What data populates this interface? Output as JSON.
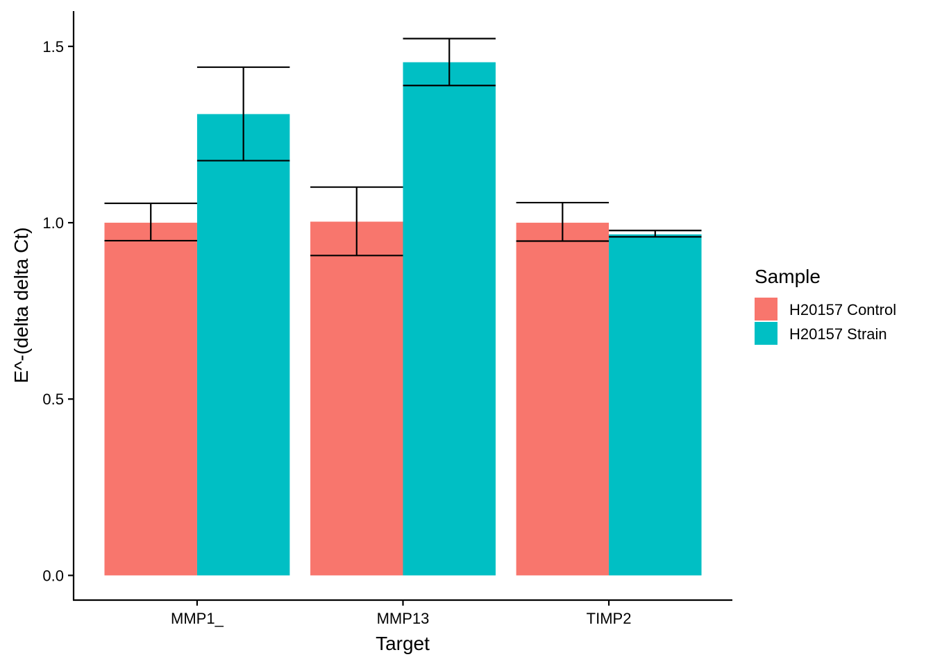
{
  "chart_data": {
    "type": "bar",
    "xlabel": "Target",
    "ylabel": "E^-(delta delta Ct)",
    "categories": [
      "MMP1_",
      "MMP13",
      "TIMP2"
    ],
    "ylim": [
      -0.07,
      1.6
    ],
    "yticks": [
      0.0,
      0.5,
      1.0,
      1.5
    ],
    "ytick_labels": [
      "0.0",
      "0.5",
      "1.0",
      "1.5"
    ],
    "legend": {
      "title": "Sample",
      "position": "right"
    },
    "grid": false,
    "series": [
      {
        "name": "H20157 Control",
        "color": "#F8766D",
        "values": [
          1.0,
          1.003,
          1.0
        ],
        "err_low": [
          0.949,
          0.907,
          0.948
        ],
        "err_high": [
          1.055,
          1.101,
          1.057
        ]
      },
      {
        "name": "H20157 Strain",
        "color": "#00BFC4",
        "values": [
          1.308,
          1.455,
          0.967
        ],
        "err_low": [
          1.176,
          1.389,
          0.96
        ],
        "err_high": [
          1.441,
          1.522,
          0.978
        ]
      }
    ]
  }
}
